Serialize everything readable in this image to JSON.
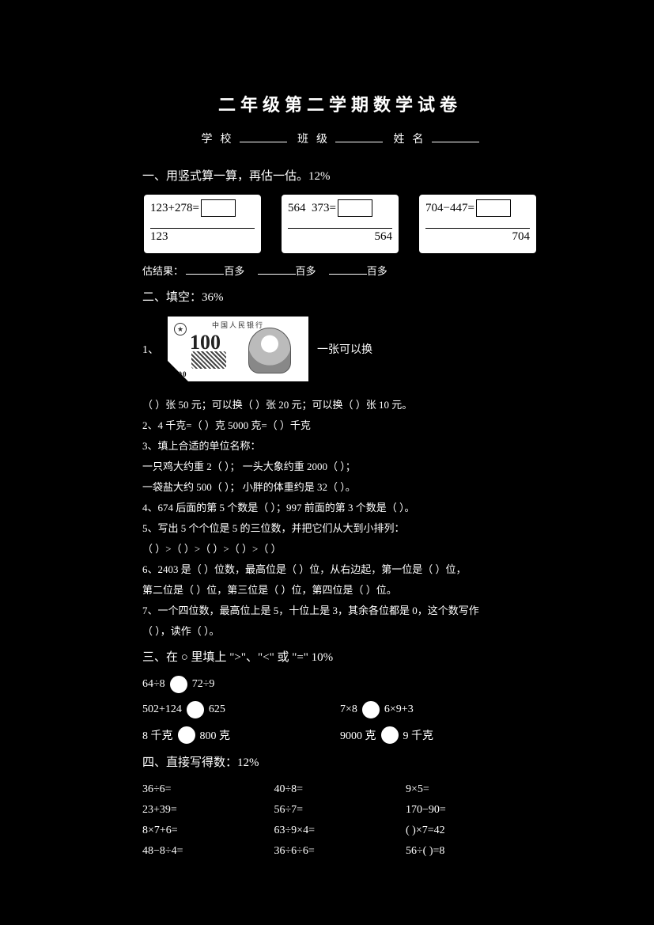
{
  "title": "二年级第二学期数学试卷",
  "schoolLine": {
    "prefix": "学校",
    "mid": "班级",
    "end": "姓名"
  },
  "section1": {
    "head": "一、用竖式算一算，再估一估。12%",
    "cards": [
      {
        "eq": "123+278=",
        "num": "123",
        "align": "left"
      },
      {
        "eq": "564−373=",
        "num": "564",
        "align": "right",
        "spaced": true
      },
      {
        "eq": "704−447=",
        "num": "704",
        "align": "right"
      }
    ],
    "estLabel": "估结果：",
    "estParts": [
      "百多",
      "百多",
      "百多"
    ]
  },
  "section2": {
    "head": "二、填空：36%",
    "noteLabelHead": "1、",
    "noteLabelTail": "一张可以换",
    "banknote": {
      "bank": "中国人民银行",
      "value": "100",
      "serial": "100"
    },
    "lines": [
      "（    ）张 50 元；可以换（    ）张 20 元；可以换（    ）张 10 元。",
      "2、4 千克=（    ）克      5000 克=（    ）千克",
      "3、填上合适的单位名称：",
      "   一只鸡大约重 2（    ）；    一头大象约重 2000（    ）；",
      "   一袋盐大约 500（    ）；    小胖的体重约是 32（    ）。",
      "4、674 后面的第 5 个数是（        ）；997 前面的第 3 个数是（        ）。",
      "5、写出 5 个个位是 5 的三位数，并把它们从大到小排列：",
      "   （    ）>（    ）>（    ）>（    ）>（    ）",
      "6、2403 是（   ）位数，最高位是（   ）位，从右边起，第一位是（   ）位，",
      "   第二位是（   ）位，第三位是（   ）位，第四位是（   ）位。",
      "7、一个四位数，最高位上是 5，十位上是 3，其余各位都是 0，这个数写作",
      "   （        ），读作（                    ）。"
    ]
  },
  "section3": {
    "head": "三、在 ○ 里填上 \">\"、\"<\" 或 \"=\"  10%",
    "rows": [
      {
        "lone": "64÷8      72÷9"
      },
      {
        "left": "502+124      625",
        "right": "7×8      6×9+3"
      },
      {
        "left": "8 千克      800 克",
        "right": "9000 克      9 千克"
      }
    ]
  },
  "section4": {
    "head": "四、直接写得数：12%",
    "items": [
      "36÷6=",
      "40÷8=",
      "9×5=",
      "23+39=",
      "56÷7=",
      "170−90=",
      "8×7+6=",
      "63÷9×4=",
      "( )×7=42",
      "48−8÷4=",
      "36÷6÷6=",
      "56÷( )=8"
    ]
  }
}
